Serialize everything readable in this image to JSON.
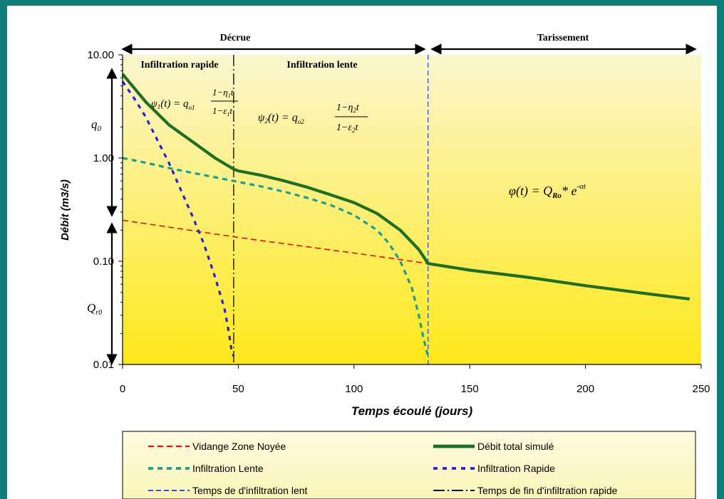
{
  "colors": {
    "frame": "#0f7f7a",
    "plot_top": "#fbf6cf",
    "plot_bottom": "#ffe81a",
    "legend_bg": "#fdf9cf",
    "total": "#1e6e23",
    "lente": "#1e9c8e",
    "rapide": "#2424d6",
    "noyee": "#e01010",
    "tarissement_marker": "#2a4fd6",
    "rapide_marker": "#000000"
  },
  "annotations": {
    "decrue": "Décrue",
    "tarissement": "Tarissement",
    "infiltration_rapide": "Infiltration rapide",
    "infiltration_lente": "Infiltration lente",
    "q0": "q",
    "q0_sub": "0",
    "qr0": "Q",
    "qr0_sub": "r0",
    "psi1": "ψ",
    "psi1_sub": "1",
    "psi1_mid": "(t) = q",
    "psi1_q_sub": "o1",
    "psi1_num": "1−η",
    "psi1_num_sub": "1",
    "psi1_num_t": "t",
    "psi1_den": "1−ε",
    "psi1_den_sub": "1",
    "psi1_den_t": "t",
    "psi2": "ψ",
    "psi2_sub": "2",
    "psi2_mid": "(t) = q",
    "psi2_q_sub": "o2",
    "psi2_num": "1−η",
    "psi2_num_sub": "2",
    "psi2_num_t": "t",
    "psi2_den": "1−ε",
    "psi2_den_sub": "2",
    "psi2_den_t": "t",
    "phi_lhs": "φ(t) = Q",
    "phi_sub": "Ro",
    "phi_rest": "* e",
    "phi_exp": "-αt"
  },
  "chart_data": {
    "type": "line",
    "xlabel": "Temps écoulé (jours)",
    "ylabel": "Débit (m3/s)",
    "xlim": [
      0,
      250
    ],
    "ylim": [
      0.01,
      10
    ],
    "yscale": "log",
    "xticks": [
      "0",
      "50",
      "100",
      "150",
      "200",
      "250"
    ],
    "yticks": [
      "0.01",
      "0.10",
      "1.00",
      "10.00"
    ],
    "grid": false,
    "legend_position": "bottom",
    "vlines": [
      {
        "name": "Temps de fin d'infiltration rapide",
        "x": 48
      },
      {
        "name": "Temps de d'infiltration lent",
        "x": 132
      }
    ],
    "series": [
      {
        "name": "Vidange Zone Noyée",
        "x": [
          0,
          50,
          100,
          132
        ],
        "y": [
          0.25,
          0.17,
          0.12,
          0.095
        ]
      },
      {
        "name": "Débit total simulé",
        "x": [
          0,
          10,
          20,
          30,
          40,
          48,
          50,
          60,
          70,
          80,
          90,
          100,
          110,
          120,
          128,
          132,
          150,
          175,
          200,
          225,
          245
        ],
        "y": [
          6.5,
          3.5,
          2.1,
          1.45,
          1.0,
          0.78,
          0.75,
          0.68,
          0.6,
          0.52,
          0.44,
          0.37,
          0.29,
          0.2,
          0.13,
          0.095,
          0.082,
          0.07,
          0.058,
          0.049,
          0.043
        ]
      },
      {
        "name": "Infiltration Lente",
        "x": [
          0,
          10,
          20,
          30,
          40,
          48,
          60,
          70,
          80,
          90,
          100,
          110,
          115,
          120,
          125,
          128,
          130,
          132
        ],
        "y": [
          1.0,
          0.9,
          0.8,
          0.72,
          0.65,
          0.6,
          0.53,
          0.47,
          0.41,
          0.35,
          0.28,
          0.2,
          0.15,
          0.1,
          0.055,
          0.03,
          0.018,
          0.012
        ]
      },
      {
        "name": "Infiltration Rapide",
        "x": [
          0,
          5,
          10,
          15,
          20,
          25,
          30,
          35,
          40,
          44,
          46,
          47,
          48
        ],
        "y": [
          5.5,
          3.8,
          2.5,
          1.5,
          0.9,
          0.5,
          0.28,
          0.15,
          0.07,
          0.035,
          0.02,
          0.014,
          0.012
        ]
      },
      {
        "name": "Temps de d'infiltration lent"
      },
      {
        "name": "Temps de fin d'infiltration rapide"
      }
    ]
  }
}
